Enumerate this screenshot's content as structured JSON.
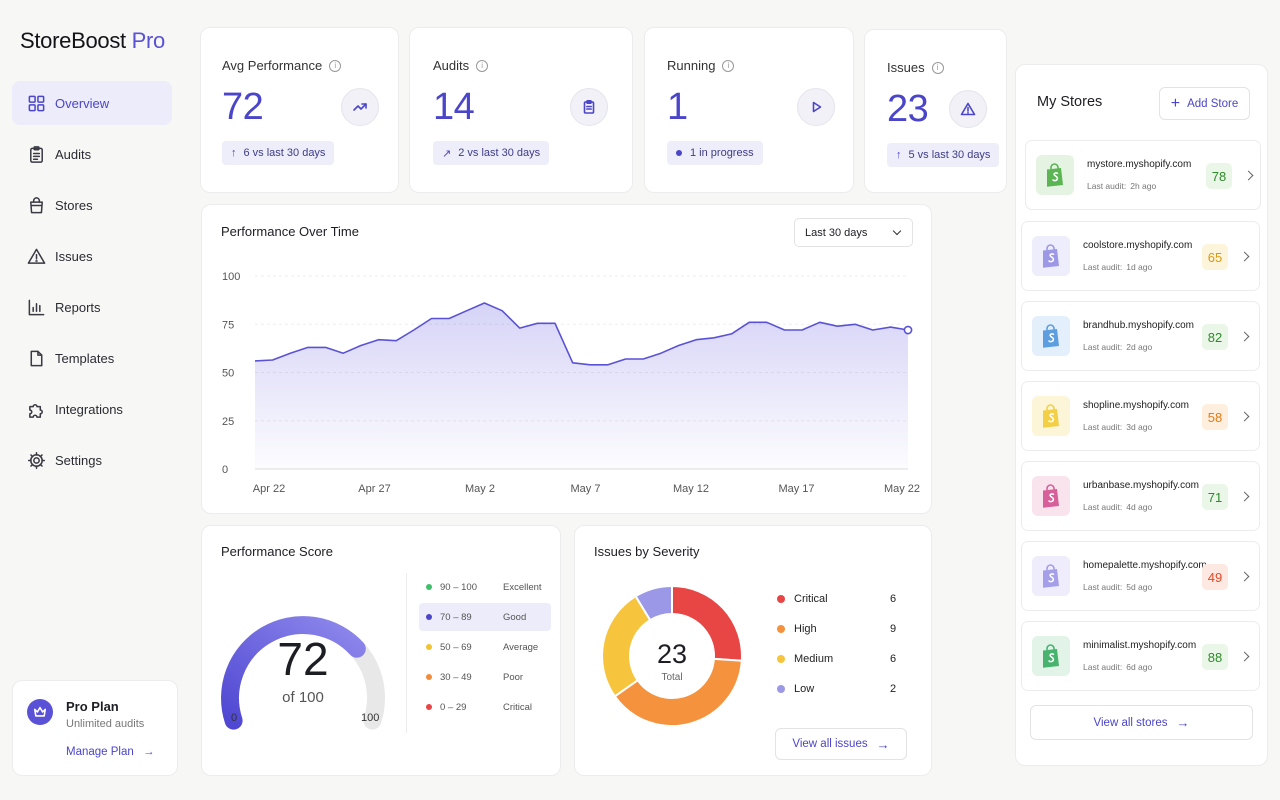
{
  "brand": {
    "name": "StoreBoost",
    "suffix": "Pro"
  },
  "sidebar": {
    "items": [
      {
        "label": "Overview",
        "icon": "grid-icon",
        "active": true
      },
      {
        "label": "Audits",
        "icon": "clipboard-icon"
      },
      {
        "label": "Stores",
        "icon": "shopping-bag-icon"
      },
      {
        "label": "Issues",
        "icon": "warning-triangle-icon"
      },
      {
        "label": "Reports",
        "icon": "bar-chart-icon"
      },
      {
        "label": "Templates",
        "icon": "document-icon"
      },
      {
        "label": "Integrations",
        "icon": "puzzle-icon"
      },
      {
        "label": "Settings",
        "icon": "gear-icon"
      }
    ],
    "plan": {
      "title": "Pro Plan",
      "subtitle": "Unlimited audits",
      "link": "Manage Plan"
    }
  },
  "kpis": [
    {
      "title": "Avg Performance",
      "value": "72",
      "icon": "trending-up-icon",
      "badge_arrow": "↑",
      "badge": "6 vs last 30 days"
    },
    {
      "title": "Audits",
      "value": "14",
      "icon": "clipboard-icon",
      "badge_arrow": "↗",
      "badge": "2 vs last 30 days"
    },
    {
      "title": "Running",
      "value": "1",
      "icon": "play-icon",
      "badge": "1 in progress"
    },
    {
      "title": "Issues",
      "value": "23",
      "icon": "warning-triangle-icon",
      "badge_arrow": "↑",
      "badge": "5 vs last 30 days"
    }
  ],
  "performance": {
    "title": "Performance Over Time",
    "range": "Last 30 days",
    "chart_data": {
      "type": "area",
      "x_labels": [
        "Apr 22",
        "Apr 27",
        "May 2",
        "May 7",
        "May 12",
        "May 17",
        "May 22"
      ],
      "y_ticks": [
        100,
        75,
        50,
        25,
        0
      ],
      "ylim": [
        0,
        100
      ],
      "values": [
        56,
        56.5,
        60,
        63,
        63,
        60,
        64,
        67,
        66.5,
        72,
        78,
        78,
        82,
        86,
        82,
        73,
        75.5,
        75.5,
        55,
        54,
        54,
        57,
        57,
        60,
        64,
        67,
        68,
        70,
        76,
        76,
        72,
        72,
        76,
        74,
        75,
        72,
        73.5,
        72
      ],
      "color": "#5a52d6"
    }
  },
  "score": {
    "title": "Performance Score",
    "value": "72",
    "of": "of 100",
    "min": "0",
    "max": "100",
    "fraction": 0.72,
    "legend": [
      {
        "range": "90 – 100",
        "label": "Excellent",
        "color": "#3fbf6a"
      },
      {
        "range": "70 – 89",
        "label": "Good",
        "color": "#4b45c9",
        "active": true
      },
      {
        "range": "50 – 69",
        "label": "Average",
        "color": "#f2c230"
      },
      {
        "range": "30 – 49",
        "label": "Poor",
        "color": "#f28c3a"
      },
      {
        "range": "0 – 29",
        "label": "Critical",
        "color": "#e84545"
      }
    ]
  },
  "severity": {
    "title": "Issues by Severity",
    "total": "23",
    "total_label": "Total",
    "chart_data": {
      "type": "pie",
      "categories": [
        "Critical",
        "High",
        "Medium",
        "Low"
      ],
      "values": [
        6,
        9,
        6,
        2
      ],
      "colors": [
        "#e84545",
        "#f5923e",
        "#f7c43e",
        "#9b98e8"
      ]
    },
    "view_all": "View all issues"
  },
  "stores": {
    "title": "My Stores",
    "add": "Add Store",
    "last_prefix": "Last audit:",
    "items": [
      {
        "domain": "mystore.myshopify.com",
        "last": "2h ago",
        "score": "78",
        "bag": "#5ab552",
        "bagbg": "#e5f3e2",
        "color": "#2f8a2b",
        "bg": "#eaf6e7"
      },
      {
        "domain": "coolstore.myshopify.com",
        "last": "1d ago",
        "score": "65",
        "bag": "#9d98e6",
        "bagbg": "#eeedfb",
        "color": "#d69a14",
        "bg": "#fdf4dc"
      },
      {
        "domain": "brandhub.myshopify.com",
        "last": "2d ago",
        "score": "82",
        "bag": "#5d9ee0",
        "bagbg": "#e3effb",
        "color": "#2f8a2b",
        "bg": "#eaf6e7"
      },
      {
        "domain": "shopline.myshopify.com",
        "last": "3d ago",
        "score": "58",
        "bag": "#f3cf45",
        "bagbg": "#fcf5d8",
        "color": "#e07b19",
        "bg": "#fdeedd"
      },
      {
        "domain": "urbanbase.myshopify.com",
        "last": "4d ago",
        "score": "71",
        "bag": "#d7609a",
        "bagbg": "#f9e4ee",
        "color": "#2f8a2b",
        "bg": "#eaf6e7"
      },
      {
        "domain": "homepalette.myshopify.com",
        "last": "5d ago",
        "score": "49",
        "bag": "#a59ee8",
        "bagbg": "#efedfb",
        "color": "#e04a2a",
        "bg": "#fde8e2"
      },
      {
        "domain": "minimalist.myshopify.com",
        "last": "6d ago",
        "score": "88",
        "bag": "#47b36f",
        "bagbg": "#e2f3e8",
        "color": "#2f8a2b",
        "bg": "#eaf6e7"
      }
    ],
    "view_all": "View all stores"
  }
}
